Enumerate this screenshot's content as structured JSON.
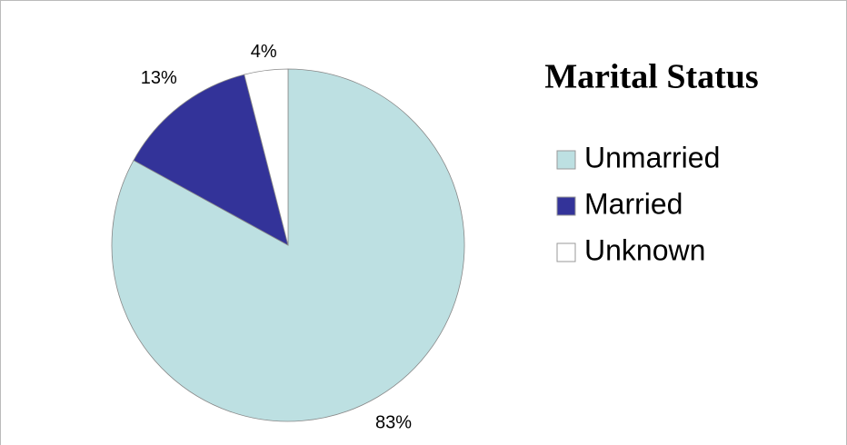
{
  "chart_data": {
    "type": "pie",
    "title": "Marital Status",
    "categories": [
      "Unmarried",
      "Married",
      "Unknown"
    ],
    "values": [
      83,
      13,
      4
    ],
    "value_labels": [
      "83%",
      "13%",
      "4%"
    ],
    "colors": [
      "#bde0e2",
      "#333399",
      "#ffffff"
    ],
    "legend": "right"
  }
}
